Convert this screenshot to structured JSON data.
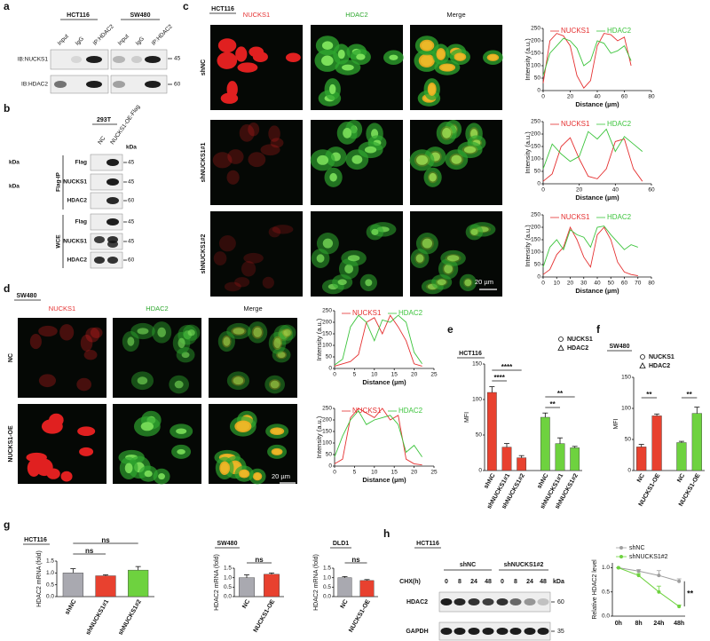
{
  "a": {
    "label": "a",
    "cell_lines": [
      "HCT116",
      "SW480"
    ],
    "lanes": [
      "Input",
      "IgG",
      "IP:HDAC2",
      "Input",
      "IgG",
      "IP:HDAC2"
    ],
    "rows": [
      "IB:NUCKS1",
      "IB:HDAC2"
    ],
    "kda": [
      "45",
      "60"
    ]
  },
  "b": {
    "label": "b",
    "cell_line": "293T",
    "lanes": [
      "NC",
      "NUCKS1-OE-Flag"
    ],
    "kda_head": "kDa",
    "side_kda": [
      "kDa",
      "kDa"
    ],
    "groups": [
      "Flag-IP",
      "WCE"
    ],
    "rows": [
      "Flag",
      "NUCKS1",
      "HDAC2",
      "Flag",
      "NUCKS1",
      "HDAC2"
    ],
    "kda": [
      "45",
      "45",
      "60",
      "45",
      "45",
      "60"
    ]
  },
  "c": {
    "label": "c",
    "cell_line": "HCT116",
    "channels": [
      "NUCKS1",
      "HDAC2",
      "Merge"
    ],
    "conditions": [
      "shNC",
      "shNUCKS1#1",
      "shNUCKS1#2"
    ],
    "scale_bar": "20 µm",
    "profiles": [
      {
        "type": "line",
        "x_label": "Distance (µm)",
        "y_label": "Intensity (a.u.)",
        "x": [
          0,
          5,
          10,
          15,
          20,
          25,
          30,
          35,
          40,
          45,
          50,
          55,
          60,
          65
        ],
        "series": [
          {
            "name": "NUCKS1",
            "color": "#e53030",
            "values": [
              30,
              200,
              230,
              220,
              180,
              60,
              10,
              40,
              180,
              230,
              225,
              200,
              215,
              100
            ]
          },
          {
            "name": "HDAC2",
            "color": "#3cc43c",
            "values": [
              60,
              150,
              180,
              210,
              200,
              170,
              100,
              120,
              200,
              190,
              150,
              160,
              180,
              120
            ]
          }
        ],
        "xlim": [
          0,
          80
        ],
        "xticks": [
          0,
          20,
          40,
          60,
          80
        ],
        "ylim": [
          0,
          250
        ],
        "yticks": [
          0,
          50,
          100,
          150,
          200,
          250
        ]
      },
      {
        "type": "line",
        "x_label": "Distance (µm)",
        "y_label": "Intensity (a.u.)",
        "x": [
          0,
          5,
          10,
          15,
          20,
          25,
          30,
          35,
          40,
          45,
          50,
          55
        ],
        "series": [
          {
            "name": "NUCKS1",
            "color": "#e53030",
            "values": [
              10,
              40,
              150,
              185,
              100,
              30,
              20,
              60,
              170,
              180,
              60,
              10
            ]
          },
          {
            "name": "HDAC2",
            "color": "#3cc43c",
            "values": [
              60,
              160,
              120,
              90,
              110,
              210,
              180,
              220,
              130,
              190,
              160,
              130
            ]
          }
        ],
        "xlim": [
          0,
          60
        ],
        "xticks": [
          0,
          20,
          40,
          60
        ],
        "ylim": [
          0,
          250
        ],
        "yticks": [
          0,
          50,
          100,
          150,
          200,
          250
        ]
      },
      {
        "type": "line",
        "x_label": "Distance (µm)",
        "y_label": "Intensity (a.u.)",
        "x": [
          0,
          5,
          10,
          15,
          20,
          25,
          30,
          35,
          40,
          45,
          50,
          55,
          60,
          65,
          70
        ],
        "series": [
          {
            "name": "NUCKS1",
            "color": "#e53030",
            "values": [
              10,
              30,
              90,
              120,
              200,
              150,
              80,
              40,
              170,
              200,
              150,
              60,
              20,
              10,
              5
            ]
          },
          {
            "name": "HDAC2",
            "color": "#3cc43c",
            "values": [
              40,
              120,
              150,
              110,
              190,
              170,
              160,
              120,
              200,
              205,
              170,
              140,
              110,
              130,
              120
            ]
          }
        ],
        "xlim": [
          0,
          80
        ],
        "xticks": [
          0,
          10,
          20,
          30,
          40,
          50,
          60,
          70,
          80
        ],
        "ylim": [
          0,
          250
        ],
        "yticks": [
          0,
          50,
          100,
          150,
          200,
          250
        ]
      }
    ]
  },
  "d": {
    "label": "d",
    "cell_line": "SW480",
    "channels": [
      "NUCKS1",
      "HDAC2",
      "Merge"
    ],
    "conditions": [
      "NC",
      "NUCKS1-OE"
    ],
    "scale_bar": "20 µm",
    "profiles": [
      {
        "type": "line",
        "x_label": "Distance (µm)",
        "y_label": "Intensity (a.u.)",
        "x": [
          0,
          2,
          4,
          6,
          8,
          10,
          12,
          14,
          16,
          18,
          20,
          22
        ],
        "series": [
          {
            "name": "NUCKS1",
            "color": "#e53030",
            "values": [
              10,
              20,
              30,
              60,
              200,
              220,
              150,
              230,
              180,
              120,
              20,
              10
            ]
          },
          {
            "name": "HDAC2",
            "color": "#3cc43c",
            "values": [
              15,
              40,
              180,
              230,
              200,
              120,
              210,
              200,
              230,
              200,
              70,
              20
            ]
          }
        ],
        "xlim": [
          0,
          25
        ],
        "xticks": [
          0,
          5,
          10,
          15,
          20,
          25
        ],
        "ylim": [
          0,
          250
        ],
        "yticks": [
          0,
          50,
          100,
          150,
          200,
          250
        ]
      },
      {
        "type": "line",
        "x_label": "Distance (µm)",
        "y_label": "Intensity (a.u.)",
        "x": [
          0,
          2,
          4,
          6,
          8,
          10,
          12,
          14,
          16,
          18,
          20,
          22
        ],
        "series": [
          {
            "name": "NUCKS1",
            "color": "#e53030",
            "values": [
              10,
              30,
              210,
              250,
              230,
              210,
              250,
              200,
              220,
              30,
              10,
              5
            ]
          },
          {
            "name": "HDAC2",
            "color": "#3cc43c",
            "values": [
              40,
              130,
              200,
              240,
              180,
              200,
              210,
              220,
              180,
              60,
              90,
              40
            ]
          }
        ],
        "xlim": [
          0,
          25
        ],
        "xticks": [
          0,
          5,
          10,
          15,
          20,
          25
        ],
        "ylim": [
          0,
          250
        ],
        "yticks": [
          0,
          50,
          100,
          150,
          200,
          250
        ]
      }
    ]
  },
  "e": {
    "label": "e",
    "cell_line": "HCT116",
    "chart": {
      "type": "bar",
      "y_label": "MFI",
      "categories": [
        "shNC",
        "shNUCKS1#1",
        "shNUCKS1#2",
        "shNC",
        "shNUCKS1#1",
        "shNUCKS1#2"
      ],
      "values": [
        110,
        33,
        18,
        75,
        38,
        32
      ],
      "errors": [
        8,
        5,
        3,
        6,
        8,
        2
      ],
      "colors": [
        "#e8412f",
        "#e8412f",
        "#e8412f",
        "#6ed23f",
        "#6ed23f",
        "#6ed23f"
      ],
      "legend": [
        {
          "name": "NUCKS1",
          "marker": "circle"
        },
        {
          "name": "HDAC2",
          "marker": "triangle"
        }
      ],
      "annotations": [
        "****",
        "****",
        "**",
        "**"
      ],
      "ylim": [
        0,
        150
      ],
      "yticks": [
        0,
        50,
        100,
        150
      ]
    }
  },
  "f": {
    "label": "f",
    "cell_line": "SW480",
    "chart": {
      "type": "bar",
      "y_label": "MFI",
      "categories": [
        "NC",
        "NUCKS1-OE",
        "NC",
        "NUCKS1-OE"
      ],
      "values": [
        38,
        88,
        45,
        92
      ],
      "errors": [
        4,
        3,
        2,
        10
      ],
      "colors": [
        "#e8412f",
        "#e8412f",
        "#6ed23f",
        "#6ed23f"
      ],
      "legend": [
        {
          "name": "NUCKS1",
          "marker": "circle"
        },
        {
          "name": "HDAC2",
          "marker": "triangle"
        }
      ],
      "annotations": [
        "**",
        "**"
      ],
      "ylim": [
        0,
        150
      ],
      "yticks": [
        0,
        50,
        100,
        150
      ]
    }
  },
  "g": {
    "label": "g",
    "charts": [
      {
        "type": "bar",
        "title": "HCT116",
        "y_label": "HDAC2 mRNA (fold)",
        "categories": [
          "shNC",
          "shNUCKS1#1",
          "shNUCKS1#2"
        ],
        "values": [
          1.0,
          0.88,
          1.12
        ],
        "errors": [
          0.18,
          0.04,
          0.15
        ],
        "colors": [
          "#a9a9b0",
          "#e8412f",
          "#6ed23f"
        ],
        "annotations": [
          "ns",
          "ns"
        ],
        "ylim": [
          0,
          1.5
        ],
        "yticks": [
          {
            "value": 0,
            "label": "0.0"
          },
          0.5,
          {
            "value": 1,
            "label": "1.0"
          },
          1.5
        ]
      },
      {
        "type": "bar",
        "title": "SW480",
        "y_label": "HDAC2 mRNA (fold)",
        "categories": [
          "NC",
          "NUCKS1-OE"
        ],
        "values": [
          1.0,
          1.18
        ],
        "errors": [
          0.15,
          0.07
        ],
        "colors": [
          "#a9a9b0",
          "#e8412f"
        ],
        "annotations": [
          "ns"
        ],
        "ylim": [
          0,
          1.5
        ],
        "yticks": [
          {
            "value": 0,
            "label": "0.0"
          },
          0.5,
          {
            "value": 1,
            "label": "1.0"
          },
          1.5
        ]
      },
      {
        "type": "bar",
        "title": "DLD1",
        "y_label": "HDAC2 mRNA (fold)",
        "categories": [
          "NC",
          "NUCKS1-OE"
        ],
        "values": [
          1.0,
          0.85
        ],
        "errors": [
          0.06,
          0.05
        ],
        "colors": [
          "#a9a9b0",
          "#e8412f"
        ],
        "annotations": [
          "ns"
        ],
        "ylim": [
          0,
          1.5
        ],
        "yticks": [
          {
            "value": 0,
            "label": "0.0"
          },
          0.5,
          {
            "value": 1,
            "label": "1.0"
          },
          1.5
        ]
      }
    ]
  },
  "h": {
    "label": "h",
    "cell_line": "HCT116",
    "blot": {
      "groups": [
        "shNC",
        "shNUCKS1#2"
      ],
      "chx": "CHX(h)",
      "times": [
        "0",
        "8",
        "24",
        "48",
        "0",
        "8",
        "24",
        "48"
      ],
      "kda_head": "kDa",
      "rows": [
        "HDAC2",
        "GAPDH"
      ],
      "kda": [
        "60",
        "35"
      ]
    },
    "chart": {
      "type": "line",
      "y_label": "Relative HDAC2 level",
      "categories": [
        "0h",
        "8h",
        "24h",
        "48h"
      ],
      "series": [
        {
          "name": "shNC",
          "color": "#9e9e9e",
          "values": [
            1.0,
            0.93,
            0.84,
            0.72
          ],
          "errors": [
            0,
            0.03,
            0.1,
            0.05
          ]
        },
        {
          "name": "shNUCKS1#2",
          "color": "#6ed23f",
          "values": [
            1.0,
            0.84,
            0.5,
            0.2
          ],
          "errors": [
            0,
            0.04,
            0.12,
            0.03
          ]
        }
      ],
      "annotations": [
        "**"
      ],
      "ylim": [
        0,
        1.1
      ],
      "yticks": [
        {
          "value": 0,
          "label": "0.0"
        },
        0.5,
        {
          "value": 1,
          "label": "1.0"
        }
      ]
    }
  }
}
